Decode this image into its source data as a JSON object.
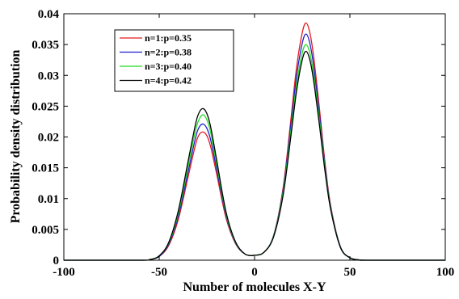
{
  "chart_data": {
    "type": "line",
    "title": "",
    "xlabel": "Number of molecules X-Y",
    "ylabel": "Probability density distribution",
    "xlim": [
      -100,
      100
    ],
    "ylim": [
      0,
      0.04
    ],
    "xticks": [
      -100,
      -50,
      0,
      50,
      100
    ],
    "xtick_labels": [
      "-100",
      "-50",
      "0",
      "50",
      "100"
    ],
    "yticks": [
      0,
      0.005,
      0.01,
      0.015,
      0.02,
      0.025,
      0.03,
      0.035,
      0.04
    ],
    "ytick_labels": [
      "0",
      "0.005",
      "0.01",
      "0.015",
      "0.02",
      "0.025",
      "0.03",
      "0.035",
      "0.04"
    ],
    "grid": false,
    "legend_position": "top-left",
    "x": [
      -100,
      -60,
      -55,
      -50,
      -45,
      -40,
      -35,
      -31,
      -29,
      -27,
      -25,
      -23,
      -20,
      -15,
      -10,
      -5,
      0,
      5,
      10,
      15,
      19,
      22,
      25,
      27,
      29,
      31,
      34,
      37,
      40,
      45,
      50,
      55,
      60,
      100
    ],
    "series": [
      {
        "name": "n=1:p=0.35",
        "color": "#e41a1c",
        "values": [
          0,
          0,
          0.0001,
          0.0006,
          0.0024,
          0.0066,
          0.0133,
          0.0187,
          0.0204,
          0.0208,
          0.0202,
          0.0184,
          0.0142,
          0.0069,
          0.0027,
          0.001,
          0.0008,
          0.0013,
          0.004,
          0.0118,
          0.0227,
          0.0312,
          0.0369,
          0.0385,
          0.0369,
          0.033,
          0.0247,
          0.0157,
          0.0087,
          0.0022,
          0.0004,
          5e-05,
          0,
          0
        ]
      },
      {
        "name": "n=2:p=0.38",
        "color": "#1f1fd0",
        "values": [
          0,
          0,
          0.0001,
          0.0006,
          0.0026,
          0.0071,
          0.0141,
          0.0198,
          0.0216,
          0.0221,
          0.0214,
          0.0195,
          0.015,
          0.0073,
          0.0028,
          0.001,
          0.0008,
          0.0013,
          0.004,
          0.0114,
          0.0218,
          0.0298,
          0.0352,
          0.0367,
          0.0352,
          0.0315,
          0.0237,
          0.0152,
          0.0085,
          0.0022,
          0.0004,
          5e-05,
          0,
          0
        ]
      },
      {
        "name": "n=3:p=0.40",
        "color": "#22dd22",
        "values": [
          0,
          0,
          0.0001,
          0.0007,
          0.0028,
          0.0076,
          0.015,
          0.021,
          0.0229,
          0.0236,
          0.0228,
          0.0207,
          0.0158,
          0.0076,
          0.0029,
          0.001,
          0.0008,
          0.0013,
          0.0039,
          0.011,
          0.0208,
          0.0284,
          0.0336,
          0.035,
          0.0336,
          0.0301,
          0.0228,
          0.0147,
          0.0083,
          0.0021,
          0.0004,
          5e-05,
          0,
          0
        ]
      },
      {
        "name": "n=4:p=0.42",
        "color": "#000000",
        "values": [
          0,
          0,
          0.0001,
          0.0007,
          0.0029,
          0.008,
          0.0158,
          0.022,
          0.024,
          0.0246,
          0.0238,
          0.0216,
          0.0165,
          0.0079,
          0.003,
          0.001,
          0.0008,
          0.0013,
          0.0038,
          0.0106,
          0.02,
          0.0274,
          0.0325,
          0.0339,
          0.0325,
          0.0291,
          0.022,
          0.0143,
          0.0081,
          0.0021,
          0.0004,
          5e-05,
          0,
          0
        ]
      }
    ]
  }
}
